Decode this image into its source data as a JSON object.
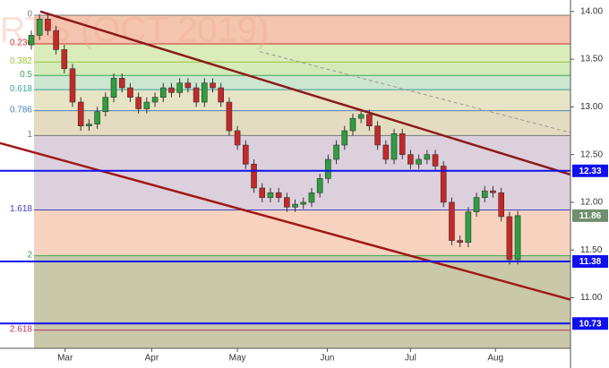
{
  "chart_data": {
    "type": "candlestick",
    "watermark": "RTS (OCT 2019)",
    "x": [
      0,
      1,
      2,
      3,
      4,
      5,
      6,
      7,
      8,
      9,
      10,
      11,
      12,
      13,
      14,
      15,
      16,
      17,
      18,
      19,
      20,
      21,
      22,
      23,
      24,
      25,
      26,
      27,
      28,
      29,
      30,
      31,
      32,
      33,
      34,
      35,
      36,
      37,
      38,
      39,
      40,
      41,
      42,
      43,
      44,
      45,
      46,
      47,
      48,
      49,
      50,
      51,
      52,
      53,
      54,
      55,
      56,
      57,
      58,
      59
    ],
    "open": [
      13.65,
      13.75,
      13.92,
      13.8,
      13.6,
      13.4,
      13.05,
      12.8,
      12.82,
      12.95,
      13.1,
      13.3,
      13.2,
      13.1,
      12.98,
      13.05,
      13.1,
      13.2,
      13.15,
      13.25,
      13.2,
      13.05,
      13.25,
      13.2,
      13.05,
      12.75,
      12.6,
      12.4,
      12.15,
      12.05,
      12.1,
      12.05,
      11.95,
      11.98,
      12.0,
      12.1,
      12.25,
      12.45,
      12.6,
      12.75,
      12.88,
      12.92,
      12.8,
      12.6,
      12.45,
      12.72,
      12.5,
      12.4,
      12.45,
      12.5,
      12.38,
      12.0,
      11.6,
      11.58,
      11.9,
      12.05,
      12.12,
      12.1,
      11.85,
      11.4
    ],
    "high": [
      13.8,
      13.97,
      13.97,
      13.85,
      13.65,
      13.45,
      13.1,
      12.87,
      13.0,
      13.15,
      13.35,
      13.35,
      13.25,
      13.15,
      13.1,
      13.15,
      13.25,
      13.25,
      13.3,
      13.3,
      13.25,
      13.3,
      13.3,
      13.25,
      13.1,
      12.8,
      12.65,
      12.45,
      12.2,
      12.15,
      12.15,
      12.1,
      12.03,
      12.05,
      12.15,
      12.3,
      12.5,
      12.65,
      12.8,
      12.93,
      12.97,
      12.97,
      12.85,
      12.65,
      12.77,
      12.77,
      12.55,
      12.5,
      12.55,
      12.55,
      12.43,
      12.05,
      11.65,
      11.95,
      12.1,
      12.17,
      12.17,
      12.15,
      11.9,
      11.91
    ],
    "low": [
      13.6,
      13.7,
      13.75,
      13.55,
      13.35,
      13.0,
      12.75,
      12.75,
      12.77,
      12.9,
      13.05,
      13.15,
      13.05,
      12.93,
      12.93,
      13.0,
      13.05,
      13.1,
      13.1,
      13.15,
      13.0,
      13.0,
      13.15,
      13.0,
      12.7,
      12.55,
      12.35,
      12.1,
      12.0,
      12.0,
      12.0,
      11.9,
      11.9,
      11.93,
      11.95,
      12.05,
      12.2,
      12.4,
      12.55,
      12.7,
      12.83,
      12.75,
      12.55,
      12.4,
      12.4,
      12.45,
      12.35,
      12.35,
      12.4,
      12.33,
      11.95,
      11.55,
      11.53,
      11.53,
      11.85,
      12.0,
      12.05,
      11.8,
      11.35,
      11.35
    ],
    "close": [
      13.75,
      13.92,
      13.8,
      13.6,
      13.4,
      13.05,
      12.8,
      12.82,
      12.95,
      13.1,
      13.3,
      13.2,
      13.1,
      12.98,
      13.05,
      13.1,
      13.2,
      13.15,
      13.25,
      13.2,
      13.05,
      13.25,
      13.2,
      13.05,
      12.75,
      12.6,
      12.4,
      12.15,
      12.05,
      12.1,
      12.05,
      11.95,
      11.98,
      12.0,
      12.1,
      12.25,
      12.45,
      12.6,
      12.75,
      12.88,
      12.92,
      12.8,
      12.6,
      12.45,
      12.72,
      12.5,
      12.4,
      12.45,
      12.5,
      12.38,
      12.0,
      11.6,
      11.58,
      11.9,
      12.05,
      12.12,
      12.1,
      11.85,
      11.4,
      11.86
    ],
    "up_color": "#2e9e3e",
    "down_color": "#c62828",
    "xlim": [
      -3.8,
      65.4
    ],
    "xticks": [
      {
        "value": 4.1,
        "label": "Mar"
      },
      {
        "value": 14.6,
        "label": "Apr"
      },
      {
        "value": 25,
        "label": "May"
      },
      {
        "value": 35.9,
        "label": "Jun"
      },
      {
        "value": 46,
        "label": "Jul"
      },
      {
        "value": 56.3,
        "label": "Aug"
      }
    ],
    "ylim": [
      10.47,
      14.12
    ],
    "yticks": [
      {
        "value": 14,
        "label": "14.00"
      },
      {
        "value": 13.5,
        "label": "13.50"
      },
      {
        "value": 13,
        "label": "13.00"
      },
      {
        "value": 12.5,
        "label": "12.50"
      },
      {
        "value": 12,
        "label": "12.00"
      },
      {
        "value": 11.5,
        "label": "11.50"
      },
      {
        "value": 11,
        "label": "11.00"
      }
    ],
    "fib_levels": [
      {
        "label": "0",
        "value": 13.96,
        "color": "#787878",
        "fill": "#f4c4ae"
      },
      {
        "label": "0.236",
        "value": 13.66,
        "color": "#d03030",
        "fill": "#d9ecb9"
      },
      {
        "label": "0.382",
        "value": 13.47,
        "color": "#9bc53d",
        "fill": "#d4eab9"
      },
      {
        "label": "0.5",
        "value": 13.33,
        "color": "#3aa655",
        "fill": "#cce6cf"
      },
      {
        "label": "0.618",
        "value": 13.18,
        "color": "#3aa0a0",
        "fill": "#e7e3c5"
      },
      {
        "label": "0.786",
        "value": 12.96,
        "color": "#4a7fb5",
        "fill": "#e4dcc0"
      },
      {
        "label": "1",
        "value": 12.7,
        "color": "#787878",
        "fill": "#dcd0dc"
      },
      {
        "label": "1.618",
        "value": 11.92,
        "color": "#4040c0",
        "fill": "#f6d2bf"
      },
      {
        "label": "2",
        "value": 11.44,
        "color": "#3aa655",
        "fill": "#c9c8a8"
      },
      {
        "label": "2.618",
        "value": 10.66,
        "color": "#c03060",
        "fill": "#c9c8a8"
      }
    ],
    "level_lines": [
      {
        "value": 12.33,
        "label": "12.33",
        "color": "#1010ee"
      },
      {
        "value": 11.38,
        "label": "11.38",
        "color": "#1010ee"
      },
      {
        "value": 10.73,
        "label": "10.73",
        "color": "#1010ee"
      }
    ],
    "last_price": {
      "value": 11.86,
      "label": "11.86",
      "color": "#6f8f6f"
    },
    "trend_lines": [
      {
        "x": [
          1.09,
          65.4
        ],
        "y": [
          14.0,
          12.29
        ],
        "color": "#8b1a1a",
        "dash": false
      },
      {
        "x": [
          -3.8,
          65.4
        ],
        "y": [
          12.62,
          10.98
        ],
        "color": "#a01818",
        "dash": false
      },
      {
        "x": [
          27.7,
          65.4
        ],
        "y": [
          13.58,
          12.73
        ],
        "color": "#999999",
        "dash": true
      }
    ]
  }
}
